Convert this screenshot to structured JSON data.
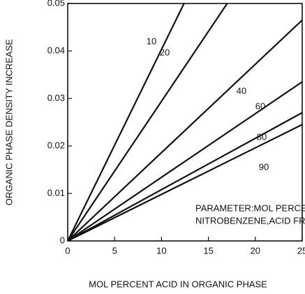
{
  "chart_data": {
    "type": "line",
    "xlabel": "MOL PERCENT ACID IN ORGANIC PHASE",
    "ylabel": "ORGANIC PHASE DENSITY INCREASE",
    "annotations": [
      "PARAMETER:MOL PERCENT",
      "NITROBENZENE,ACID FREE"
    ],
    "xlim": [
      0,
      25
    ],
    "ylim": [
      0,
      0.05
    ],
    "xticks": [
      0,
      5,
      10,
      15,
      20,
      25
    ],
    "yticks": [
      0,
      0.01,
      0.02,
      0.03,
      0.04,
      0.05
    ],
    "series": [
      {
        "name": "10",
        "color": "#111111",
        "x": [
          0,
          12.4
        ],
        "values": [
          0,
          0.05
        ]
      },
      {
        "name": "20",
        "color": "#111111",
        "x": [
          0,
          17
        ],
        "values": [
          0,
          0.05
        ]
      },
      {
        "name": "40",
        "color": "#111111",
        "x": [
          0,
          25
        ],
        "values": [
          0,
          0.0465
        ]
      },
      {
        "name": "60",
        "color": "#111111",
        "x": [
          0,
          25
        ],
        "values": [
          0,
          0.0335
        ]
      },
      {
        "name": "80",
        "color": "#111111",
        "x": [
          0,
          25
        ],
        "values": [
          0,
          0.027
        ]
      },
      {
        "name": "90",
        "color": "#111111",
        "x": [
          0,
          25
        ],
        "values": [
          0,
          0.0245
        ]
      }
    ]
  }
}
